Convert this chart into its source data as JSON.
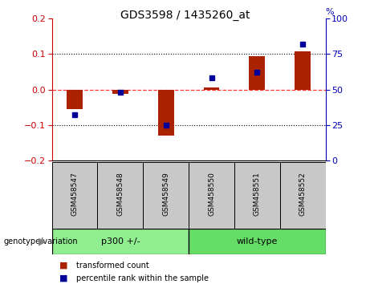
{
  "title": "GDS3598 / 1435260_at",
  "samples": [
    "GSM458547",
    "GSM458548",
    "GSM458549",
    "GSM458550",
    "GSM458551",
    "GSM458552"
  ],
  "red_values": [
    -0.055,
    -0.012,
    -0.13,
    0.005,
    0.093,
    0.107
  ],
  "blue_values_pct": [
    32,
    48,
    25,
    58,
    62,
    82
  ],
  "ylim_left": [
    -0.2,
    0.2
  ],
  "ylim_right": [
    0,
    100
  ],
  "yticks_left": [
    -0.2,
    -0.1,
    0.0,
    0.1,
    0.2
  ],
  "yticks_right": [
    0,
    25,
    50,
    75,
    100
  ],
  "bar_color": "#AA2200",
  "dot_color": "#000099",
  "left_axis_color": "#CC0000",
  "right_axis_color": "#0000BB",
  "bar_width": 0.35,
  "group_label": "genotype/variation",
  "groups": [
    {
      "label": "p300 +/-",
      "start": 0,
      "end": 2,
      "color": "#90EE90"
    },
    {
      "label": "wild-type",
      "start": 3,
      "end": 5,
      "color": "#66DD66"
    }
  ],
  "sample_box_color": "#C8C8C8",
  "legend_items": [
    {
      "color": "#AA2200",
      "label": "transformed count"
    },
    {
      "color": "#000099",
      "label": "percentile rank within the sample"
    }
  ]
}
